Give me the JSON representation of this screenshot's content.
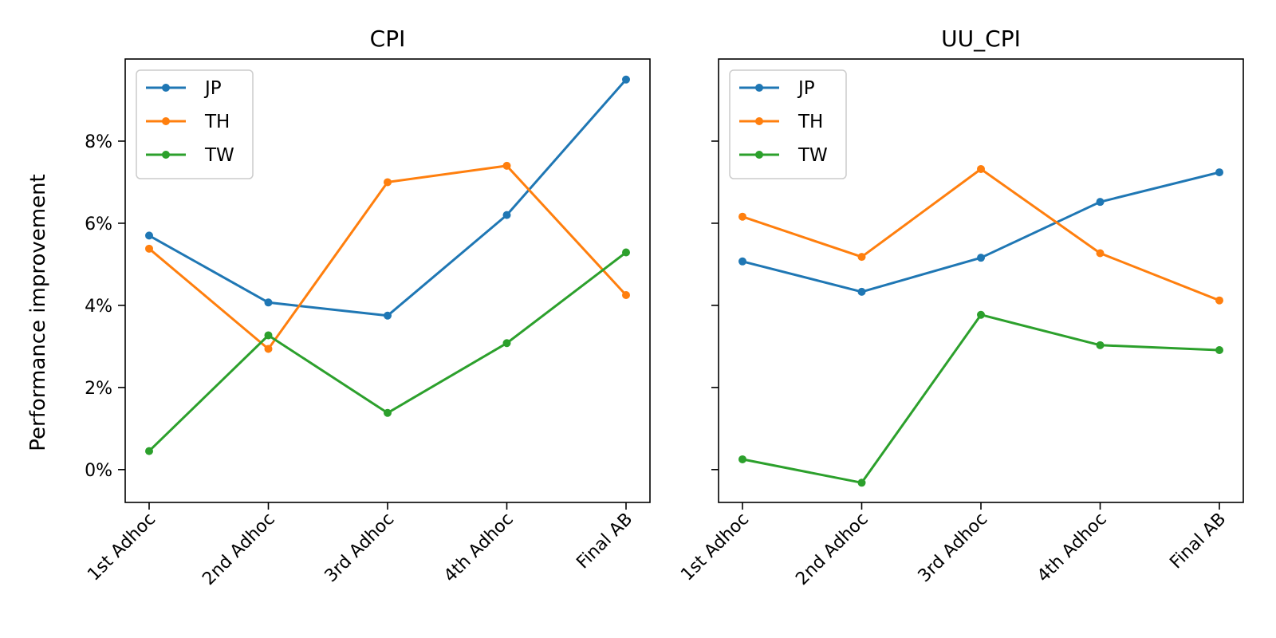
{
  "figure": {
    "ylabel": "Performance improvement"
  },
  "chart_data": [
    {
      "type": "line",
      "title": "CPI",
      "xlabel": "",
      "ylabel": "Performance improvement",
      "categories": [
        "1st Adhoc",
        "2nd Adhoc",
        "3rd Adhoc",
        "4th Adhoc",
        "Final AB"
      ],
      "ylim": [
        -0.8,
        10.0
      ],
      "yticks": [
        0,
        2,
        4,
        6,
        8
      ],
      "ytick_labels": [
        "0%",
        "2%",
        "4%",
        "6%",
        "8%"
      ],
      "grid": false,
      "legend": "top-left",
      "series": [
        {
          "name": "JP",
          "color": "#1f77b4",
          "values": [
            5.7,
            4.07,
            3.75,
            6.2,
            9.5
          ]
        },
        {
          "name": "TH",
          "color": "#ff7f0e",
          "values": [
            5.38,
            2.94,
            7.0,
            7.4,
            4.25
          ]
        },
        {
          "name": "TW",
          "color": "#2ca02c",
          "values": [
            0.45,
            3.27,
            1.38,
            3.08,
            5.29
          ]
        }
      ]
    },
    {
      "type": "line",
      "title": "UU_CPI",
      "xlabel": "",
      "ylabel": "",
      "categories": [
        "1st Adhoc",
        "2nd Adhoc",
        "3rd Adhoc",
        "4th Adhoc",
        "Final AB"
      ],
      "ylim": [
        -0.8,
        10.0
      ],
      "yticks": [
        0,
        2,
        4,
        6,
        8
      ],
      "ytick_labels": [
        "",
        "",
        "",
        "",
        ""
      ],
      "grid": false,
      "legend": "top-left",
      "series": [
        {
          "name": "JP",
          "color": "#1f77b4",
          "values": [
            5.07,
            4.33,
            5.16,
            6.52,
            7.24
          ]
        },
        {
          "name": "TH",
          "color": "#ff7f0e",
          "values": [
            6.16,
            5.18,
            7.32,
            5.27,
            4.12
          ]
        },
        {
          "name": "TW",
          "color": "#2ca02c",
          "values": [
            0.25,
            -0.32,
            3.77,
            3.03,
            2.91
          ]
        }
      ]
    }
  ]
}
